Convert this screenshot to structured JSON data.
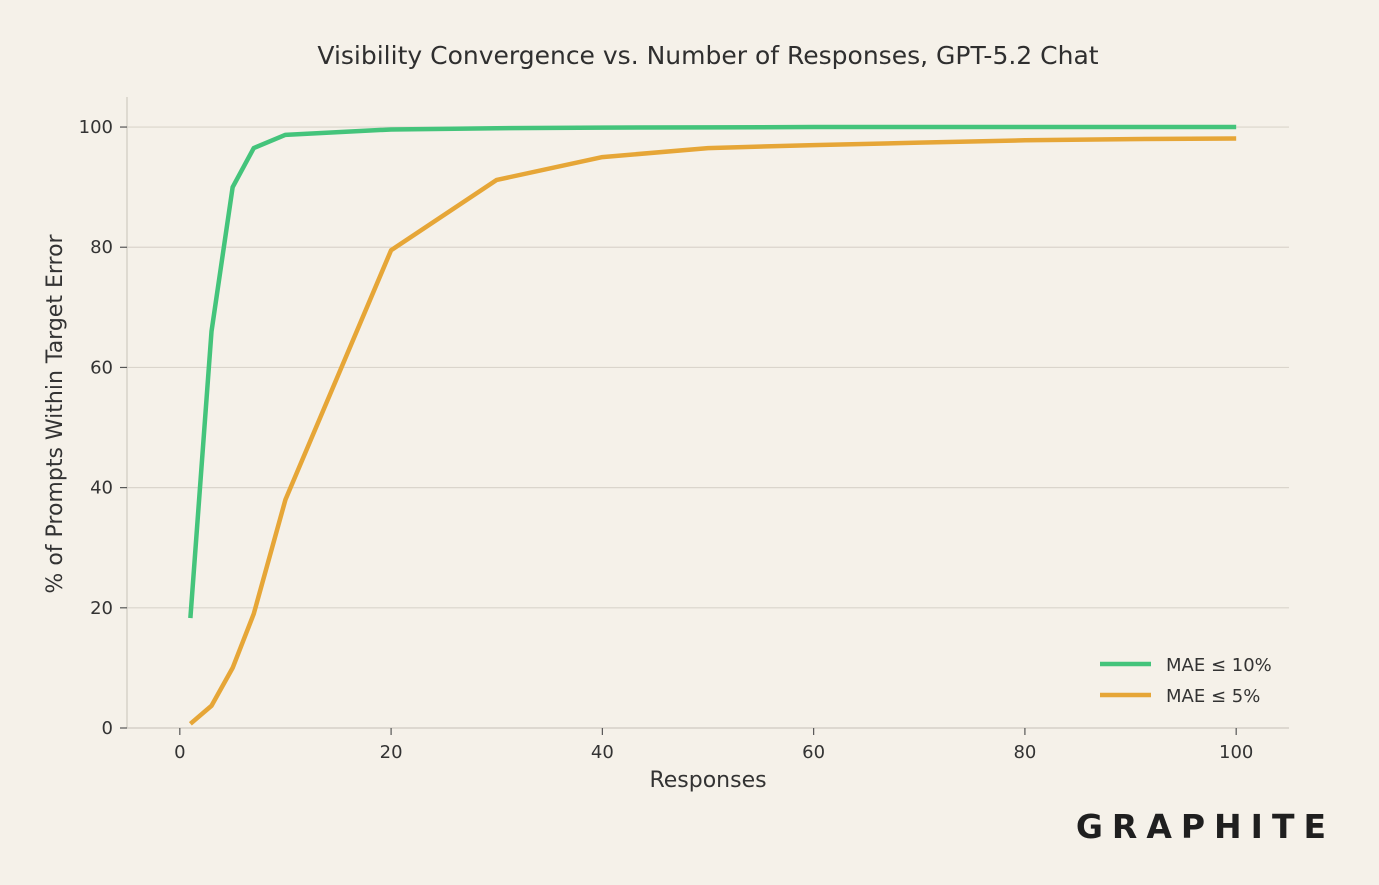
{
  "chart_data": {
    "type": "line",
    "title": "Visibility Convergence vs. Number of Responses, GPT-5.2 Chat",
    "xlabel": "Responses",
    "ylabel": "% of Prompts Within Target Error",
    "xlim": [
      -5,
      105
    ],
    "ylim": [
      0,
      105
    ],
    "xticks": [
      0,
      20,
      40,
      60,
      80,
      100
    ],
    "yticks": [
      0,
      20,
      40,
      60,
      80,
      100
    ],
    "grid": "horizontal",
    "legend_position": "bottom-right",
    "series": [
      {
        "name": "MAE ≤ 10%",
        "color": "#44c47b",
        "points": [
          [
            1,
            18.3
          ],
          [
            3,
            66.0
          ],
          [
            5,
            90.0
          ],
          [
            7,
            96.5
          ],
          [
            10,
            98.7
          ],
          [
            20,
            99.6
          ],
          [
            30,
            99.8
          ],
          [
            40,
            99.9
          ],
          [
            50,
            99.95
          ],
          [
            60,
            100
          ],
          [
            70,
            100
          ],
          [
            80,
            100
          ],
          [
            90,
            100
          ],
          [
            100,
            100
          ]
        ]
      },
      {
        "name": "MAE ≤ 5%",
        "color": "#e6a637",
        "points": [
          [
            1,
            0.7
          ],
          [
            3,
            3.7
          ],
          [
            5,
            10.0
          ],
          [
            7,
            19.0
          ],
          [
            10,
            38.0
          ],
          [
            20,
            79.5
          ],
          [
            30,
            91.2
          ],
          [
            40,
            95.0
          ],
          [
            50,
            96.5
          ],
          [
            60,
            97.0
          ],
          [
            70,
            97.4
          ],
          [
            80,
            97.8
          ],
          [
            90,
            98.0
          ],
          [
            100,
            98.1
          ]
        ]
      }
    ]
  },
  "branding": {
    "logo_text": "GRAPHITE"
  }
}
